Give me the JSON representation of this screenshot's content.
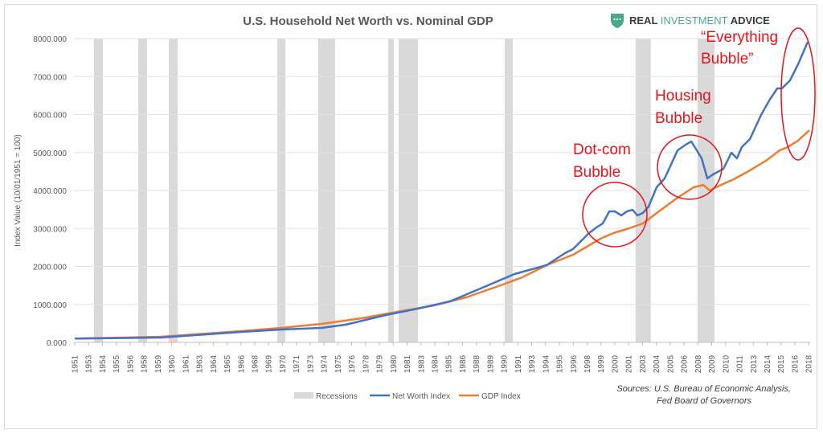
{
  "logo": {
    "part1": "REAL ",
    "part2": "INVESTMENT",
    "part3": " ADVICE",
    "icon": "shield-chat-icon",
    "color": "#4aa88a"
  },
  "sources": [
    "Sources: U.S. Bureau of Economic Analysis,",
    "Fed Board of Governors"
  ],
  "annotations": [
    {
      "lines": [
        "Dot-com",
        "Bubble"
      ]
    },
    {
      "lines": [
        "Housing",
        "Bubble"
      ]
    },
    {
      "lines": [
        "“Everything",
        "Bubble”"
      ]
    }
  ],
  "chart_data": {
    "type": "line",
    "title": "U.S. Household Net Worth vs. Nominal GDP",
    "xlabel": "",
    "ylabel": "Index Value (10/01/1951 = 100)",
    "ylim": [
      0,
      8000
    ],
    "yticks": [
      "0.000",
      "1000.000",
      "2000.000",
      "3000.000",
      "4000.000",
      "5000.000",
      "6000.000",
      "7000.000",
      "8000.000"
    ],
    "x_unit": "tick-label index (0 = first label, 53 = last label)",
    "x_tick_labels": [
      "1951",
      "1953",
      "1954",
      "1955",
      "1956",
      "1958",
      "1959",
      "1960",
      "1961",
      "1963",
      "1964",
      "1965",
      "1966",
      "1968",
      "1969",
      "1970",
      "1971",
      "1973",
      "1974",
      "1975",
      "1976",
      "1978",
      "1979",
      "1980",
      "1981",
      "1983",
      "1984",
      "1985",
      "1986",
      "1988",
      "1989",
      "1990",
      "1991",
      "1993",
      "1994",
      "1995",
      "1996",
      "1998",
      "1999",
      "2000",
      "2001",
      "2003",
      "2004",
      "2005",
      "2006",
      "2008",
      "2009",
      "2010",
      "2011",
      "2013",
      "2014",
      "2015",
      "2016",
      "2018"
    ],
    "grid": true,
    "legend_position": "bottom",
    "recessions": [
      [
        1.39,
        2.03
      ],
      [
        4.59,
        5.22
      ],
      [
        6.79,
        7.43
      ],
      [
        14.63,
        15.21
      ],
      [
        17.58,
        18.8
      ],
      [
        22.63,
        23.04
      ],
      [
        23.39,
        24.79
      ],
      [
        31.05,
        31.63
      ],
      [
        40.5,
        41.6
      ],
      [
        44.98,
        46.2
      ]
    ],
    "series": [
      {
        "name": "Net Worth Index",
        "color": "#4472c4",
        "x": [
          0,
          6.21,
          12.01,
          14.92,
          17.82,
          19.56,
          22.46,
          24.78,
          27.1,
          29.43,
          31.75,
          34.07,
          35.4,
          35.98,
          36.56,
          37.14,
          37.67,
          38.13,
          38.6,
          39.0,
          39.47,
          39.87,
          40.28,
          40.63,
          41.03,
          41.44,
          42.02,
          42.6,
          43.53,
          44.11,
          44.52,
          44.92,
          45.27,
          45.68,
          46.08,
          46.84,
          47.42,
          47.82,
          48.17,
          48.75,
          49.56,
          50.15,
          50.73,
          51.07,
          51.65,
          52.23,
          52.93
        ],
        "values": [
          100,
          127,
          275,
          339,
          381,
          466,
          720,
          889,
          1079,
          1439,
          1799,
          2032,
          2349,
          2455,
          2666,
          2878,
          3026,
          3132,
          3449,
          3449,
          3343,
          3449,
          3491,
          3343,
          3407,
          3576,
          4084,
          4317,
          5057,
          5205,
          5290,
          5057,
          4846,
          4317,
          4422,
          4571,
          4994,
          4846,
          5142,
          5353,
          5988,
          6369,
          6687,
          6687,
          6898,
          7321,
          7914
        ]
      },
      {
        "name": "GDP Index",
        "color": "#ed7d31",
        "x": [
          0,
          6.21,
          12.01,
          14.92,
          17.82,
          20.72,
          23.62,
          25.94,
          28.27,
          30.59,
          32.33,
          34.07,
          35.98,
          37.96,
          38.89,
          39.87,
          41.03,
          42.19,
          43.36,
          44.69,
          45.39,
          45.85,
          46.66,
          47.59,
          48.75,
          49.91,
          50.9,
          51.48,
          52.23,
          53.05
        ],
        "values": [
          100,
          148,
          296,
          381,
          487,
          635,
          825,
          973,
          1185,
          1481,
          1714,
          2032,
          2306,
          2730,
          2878,
          2984,
          3132,
          3449,
          3766,
          4084,
          4147,
          3999,
          4147,
          4296,
          4528,
          4782,
          5057,
          5142,
          5311,
          5586
        ]
      }
    ],
    "legend": [
      "Recessions",
      "Net Worth Index",
      "GDP Index"
    ],
    "recession_color": "#d9d9d9"
  }
}
